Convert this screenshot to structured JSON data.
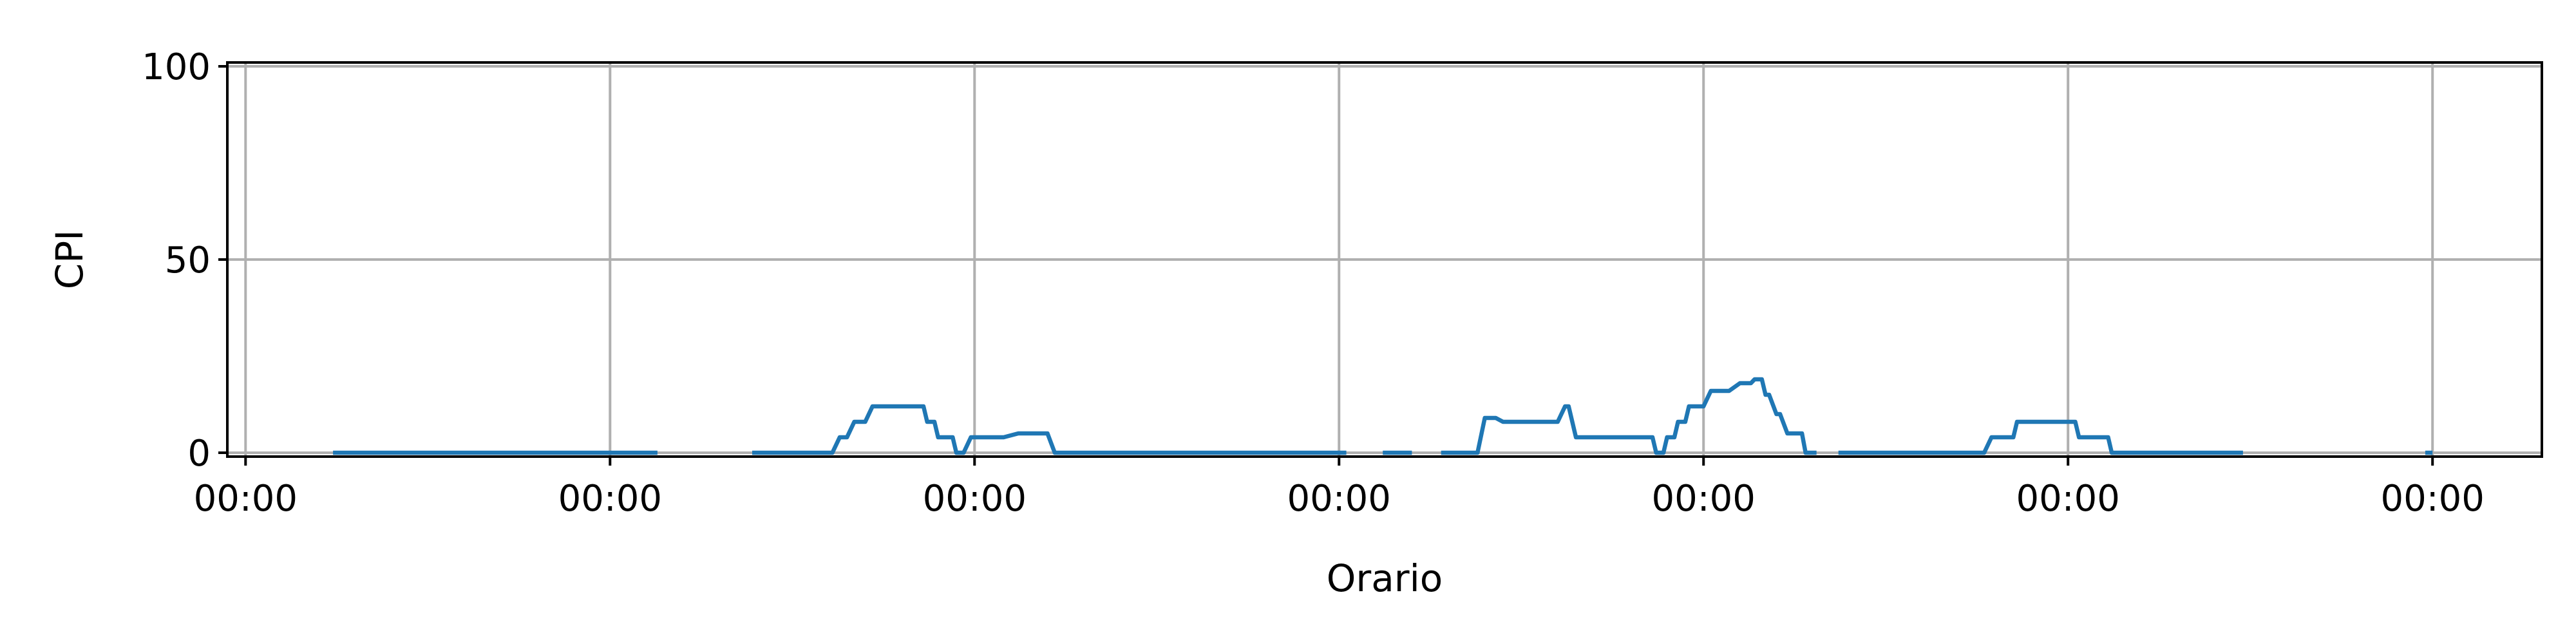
{
  "chart_data": {
    "type": "line",
    "title": "",
    "xlabel": "Orario",
    "ylabel": "CPI",
    "x_tick_labels": [
      "00:00",
      "00:00",
      "00:00",
      "00:00",
      "00:00",
      "00:00",
      "00:00"
    ],
    "y_ticks": [
      0,
      50,
      100
    ],
    "ylim": [
      -1,
      101
    ],
    "xlim": [
      -0.05,
      6.3
    ],
    "grid": true,
    "colors": {
      "line": "#1f77b4",
      "grid": "#b0b0b0",
      "axes": "#000000"
    },
    "series": [
      {
        "segments": [
          [
            [
              0.24,
              0
            ],
            [
              1.13,
              0
            ]
          ],
          [
            [
              1.39,
              0
            ],
            [
              1.61,
              0
            ],
            [
              1.63,
              4
            ],
            [
              1.65,
              4
            ],
            [
              1.67,
              8
            ],
            [
              1.7,
              8
            ],
            [
              1.72,
              12
            ],
            [
              1.86,
              12
            ],
            [
              1.87,
              8
            ],
            [
              1.89,
              8
            ],
            [
              1.9,
              4
            ],
            [
              1.94,
              4
            ],
            [
              1.95,
              0
            ],
            [
              1.97,
              0
            ],
            [
              1.99,
              4
            ],
            [
              2.08,
              4
            ],
            [
              2.12,
              5
            ],
            [
              2.2,
              5
            ],
            [
              2.22,
              0
            ],
            [
              3.02,
              0
            ]
          ],
          [
            [
              3.12,
              0
            ],
            [
              3.2,
              0
            ]
          ],
          [
            [
              3.28,
              0
            ],
            [
              3.38,
              0
            ],
            [
              3.4,
              9
            ],
            [
              3.43,
              9
            ],
            [
              3.45,
              8
            ],
            [
              3.6,
              8
            ],
            [
              3.62,
              12
            ],
            [
              3.63,
              12
            ],
            [
              3.65,
              4
            ],
            [
              3.86,
              4
            ],
            [
              3.87,
              0
            ],
            [
              3.89,
              0
            ],
            [
              3.9,
              4
            ],
            [
              3.92,
              4
            ],
            [
              3.93,
              8
            ],
            [
              3.95,
              8
            ],
            [
              3.96,
              12
            ],
            [
              4.0,
              12
            ],
            [
              4.02,
              16
            ],
            [
              4.07,
              16
            ],
            [
              4.1,
              18
            ],
            [
              4.13,
              18
            ],
            [
              4.14,
              19
            ],
            [
              4.16,
              19
            ],
            [
              4.17,
              15
            ],
            [
              4.18,
              15
            ],
            [
              4.2,
              10
            ],
            [
              4.21,
              10
            ],
            [
              4.23,
              5
            ],
            [
              4.27,
              5
            ],
            [
              4.28,
              0
            ],
            [
              4.31,
              0
            ]
          ],
          [
            [
              4.37,
              0
            ],
            [
              4.77,
              0
            ],
            [
              4.79,
              4
            ],
            [
              4.85,
              4
            ],
            [
              4.86,
              8
            ],
            [
              5.02,
              8
            ],
            [
              5.03,
              4
            ],
            [
              5.11,
              4
            ],
            [
              5.12,
              0
            ],
            [
              5.48,
              0
            ]
          ],
          [
            [
              5.98,
              0
            ],
            [
              6.0,
              0
            ]
          ]
        ]
      }
    ]
  }
}
